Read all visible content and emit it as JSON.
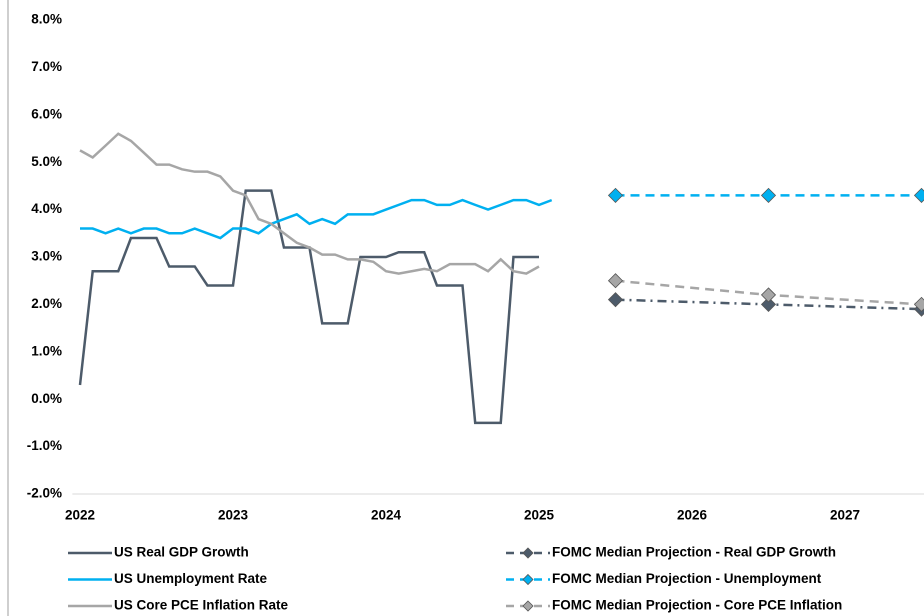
{
  "chart_data": {
    "type": "line",
    "xlim": [
      2021.95,
      2027.5
    ],
    "xticks": [
      2022,
      2023,
      2024,
      2025,
      2026,
      2027
    ],
    "ylim": [
      -2,
      8
    ],
    "yticks": [
      {
        "value": -2,
        "label": "-2.0%"
      },
      {
        "value": -1,
        "label": "-1.0%"
      },
      {
        "value": 0,
        "label": "0.0%"
      },
      {
        "value": 1,
        "label": "1.0%"
      },
      {
        "value": 2,
        "label": "2.0%"
      },
      {
        "value": 3,
        "label": "3.0%"
      },
      {
        "value": 4,
        "label": "4.0%"
      },
      {
        "value": 5,
        "label": "5.0%"
      },
      {
        "value": 6,
        "label": "6.0%"
      },
      {
        "value": 7,
        "label": "7.0%"
      },
      {
        "value": 8,
        "label": "8.0%"
      }
    ],
    "series": [
      {
        "name": "US Real GDP Growth",
        "color": "#4d5b6a",
        "style": "solid",
        "x": [
          2022,
          2022.083,
          2022.167,
          2022.25,
          2022.333,
          2022.417,
          2022.5,
          2022.583,
          2022.667,
          2022.75,
          2022.833,
          2022.917,
          2023,
          2023.083,
          2023.167,
          2023.25,
          2023.333,
          2023.417,
          2023.5,
          2023.583,
          2023.667,
          2023.75,
          2023.833,
          2023.917,
          2024,
          2024.083,
          2024.167,
          2024.25,
          2024.333,
          2024.417,
          2024.5,
          2024.583,
          2024.667,
          2024.75,
          2024.833,
          2024.917,
          2025
        ],
        "values": [
          0.3,
          2.7,
          2.7,
          2.7,
          3.4,
          3.4,
          3.4,
          2.8,
          2.8,
          2.8,
          2.4,
          2.4,
          2.4,
          4.4,
          4.4,
          4.4,
          3.2,
          3.2,
          3.2,
          1.6,
          1.6,
          1.6,
          3.0,
          3.0,
          3.0,
          3.1,
          3.1,
          3.1,
          2.4,
          2.4,
          2.4,
          -0.5,
          -0.5,
          -0.5,
          3.0,
          3.0,
          3.0
        ]
      },
      {
        "name": "US Unemployment Rate",
        "color": "#00b0f0",
        "style": "solid",
        "x": [
          2022,
          2022.083,
          2022.167,
          2022.25,
          2022.333,
          2022.417,
          2022.5,
          2022.583,
          2022.667,
          2022.75,
          2022.833,
          2022.917,
          2023,
          2023.083,
          2023.167,
          2023.25,
          2023.333,
          2023.417,
          2023.5,
          2023.583,
          2023.667,
          2023.75,
          2023.833,
          2023.917,
          2024,
          2024.083,
          2024.167,
          2024.25,
          2024.333,
          2024.417,
          2024.5,
          2024.583,
          2024.667,
          2024.75,
          2024.833,
          2024.917,
          2025,
          2025.083
        ],
        "values": [
          3.6,
          3.6,
          3.5,
          3.6,
          3.5,
          3.6,
          3.6,
          3.5,
          3.5,
          3.6,
          3.5,
          3.4,
          3.6,
          3.6,
          3.5,
          3.7,
          3.8,
          3.9,
          3.7,
          3.8,
          3.7,
          3.9,
          3.9,
          3.9,
          4.0,
          4.1,
          4.2,
          4.2,
          4.1,
          4.1,
          4.2,
          4.1,
          4.0,
          4.1,
          4.2,
          4.2,
          4.1,
          4.2
        ]
      },
      {
        "name": "US Core PCE Inflation Rate",
        "color": "#a6a6a6",
        "style": "solid",
        "x": [
          2022,
          2022.083,
          2022.167,
          2022.25,
          2022.333,
          2022.417,
          2022.5,
          2022.583,
          2022.667,
          2022.75,
          2022.833,
          2022.917,
          2023,
          2023.083,
          2023.167,
          2023.25,
          2023.333,
          2023.417,
          2023.5,
          2023.583,
          2023.667,
          2023.75,
          2023.833,
          2023.917,
          2024,
          2024.083,
          2024.167,
          2024.25,
          2024.333,
          2024.417,
          2024.5,
          2024.583,
          2024.667,
          2024.75,
          2024.833,
          2024.917,
          2025
        ],
        "values": [
          5.25,
          5.1,
          5.35,
          5.6,
          5.45,
          5.2,
          4.95,
          4.95,
          4.85,
          4.8,
          4.8,
          4.7,
          4.4,
          4.3,
          3.8,
          3.7,
          3.5,
          3.3,
          3.2,
          3.05,
          3.05,
          2.95,
          2.95,
          2.9,
          2.7,
          2.65,
          2.7,
          2.75,
          2.7,
          2.85,
          2.85,
          2.85,
          2.7,
          2.95,
          2.7,
          2.65,
          2.8
        ]
      },
      {
        "name": "FOMC Median Projection - Real GDP Growth",
        "color": "#4d5b6a",
        "style": "dashdot",
        "marker": "diamond",
        "x": [
          2025.5,
          2026.5,
          2027.5
        ],
        "values": [
          2.1,
          2.0,
          1.9
        ]
      },
      {
        "name": "FOMC Median Projection - Unemployment",
        "color": "#00b0f0",
        "style": "dashed",
        "marker": "diamond",
        "x": [
          2025.5,
          2026.5,
          2027.5
        ],
        "values": [
          4.3,
          4.3,
          4.3
        ]
      },
      {
        "name": "FOMC Median Projection - Core PCE Inflation",
        "color": "#a6a6a6",
        "style": "dashed",
        "marker": "diamond",
        "x": [
          2025.5,
          2026.5,
          2027.5
        ],
        "values": [
          2.5,
          2.2,
          2.0
        ]
      }
    ]
  }
}
